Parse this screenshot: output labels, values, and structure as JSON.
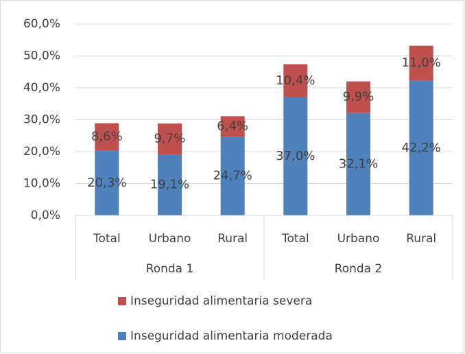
{
  "chart_data": {
    "type": "stacked_bar",
    "categories": [
      "Total",
      "Urbano",
      "Rural",
      "Total",
      "Urbano",
      "Rural"
    ],
    "groups": [
      "Ronda 1",
      "Ronda 2"
    ],
    "series": [
      {
        "name": "Inseguridad alimentaria moderada",
        "color": "#4f81bd",
        "values": [
          20.3,
          19.1,
          24.7,
          37.0,
          32.1,
          42.2
        ],
        "value_labels": [
          "20,3%",
          "19,1%",
          "24,7%",
          "37,0%",
          "32,1%",
          "42,2%"
        ]
      },
      {
        "name": "Inseguridad alimentaria severa",
        "color": "#c0504d",
        "values": [
          8.6,
          9.7,
          6.4,
          10.4,
          9.9,
          11.0
        ],
        "value_labels": [
          "8,6%",
          "9,7%",
          "6,4%",
          "10,4%",
          "9,9%",
          "11,0%"
        ]
      }
    ],
    "ylim": [
      0,
      60
    ],
    "yticks": [
      {
        "value": 0,
        "label": "0,0%"
      },
      {
        "value": 10,
        "label": "10,0%"
      },
      {
        "value": 20,
        "label": "20,0%"
      },
      {
        "value": 30,
        "label": "30,0%"
      },
      {
        "value": 40,
        "label": "40,0%"
      },
      {
        "value": 50,
        "label": "50,0%"
      },
      {
        "value": 60,
        "label": "60,0%"
      }
    ],
    "grid": true
  }
}
